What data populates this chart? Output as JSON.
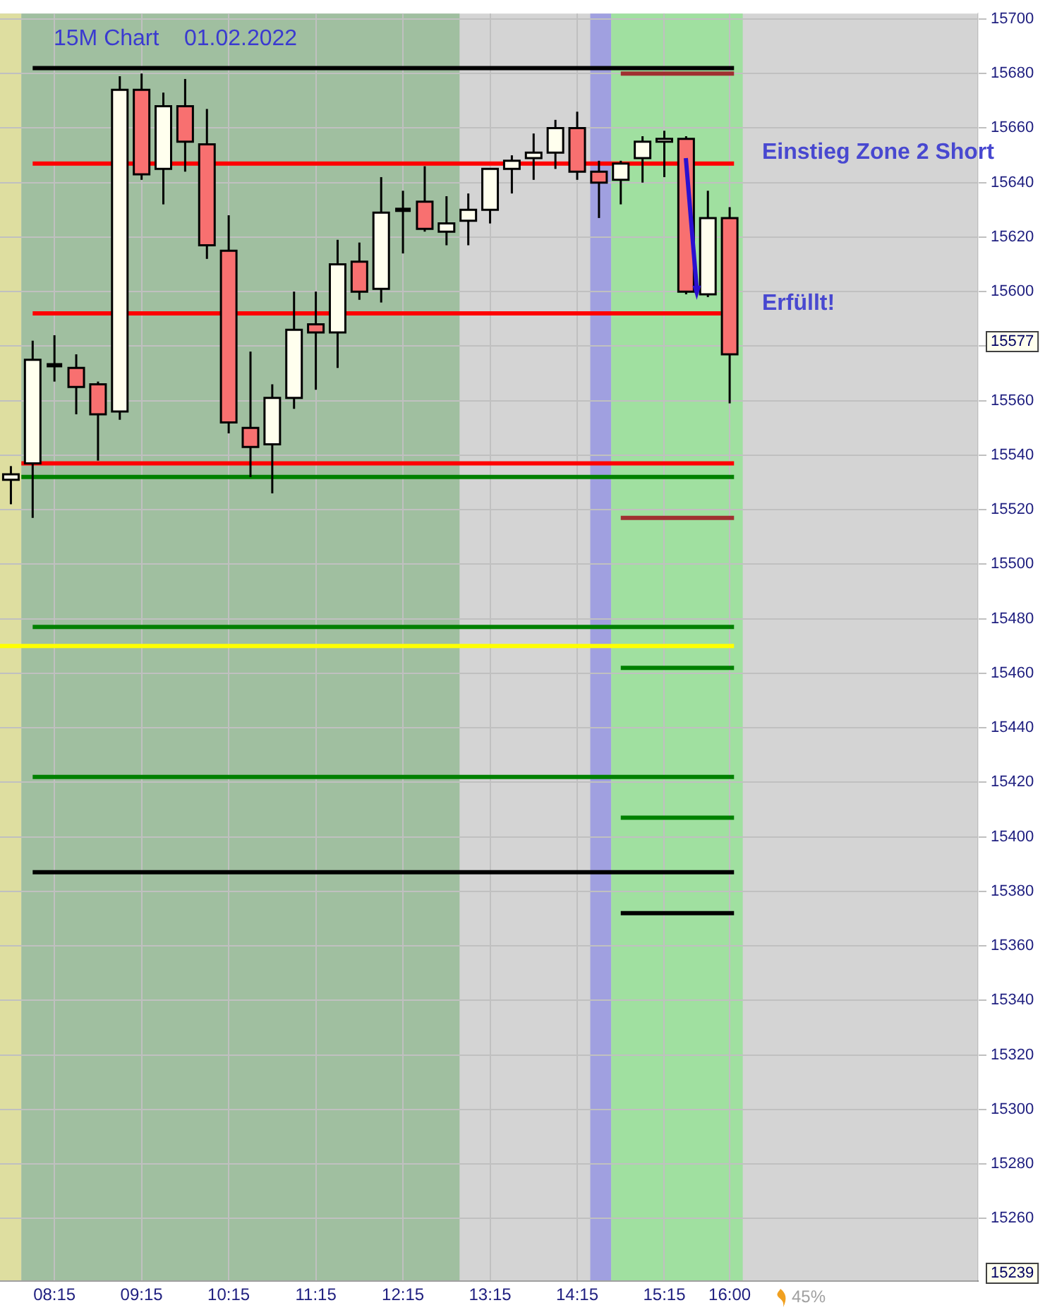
{
  "chart_data": {
    "type": "candlestick",
    "title": "15M Chart    01.02.2022",
    "x": [
      7.75,
      8,
      8.25,
      8.5,
      8.75,
      9,
      9.25,
      9.5,
      9.75,
      10,
      10.25,
      10.5,
      10.75,
      11,
      11.25,
      11.5,
      11.75,
      12,
      12.25,
      12.5,
      12.75,
      13,
      13.25,
      13.5,
      13.75,
      14,
      14.25,
      14.5,
      14.75,
      15,
      15.25,
      15.5,
      15.75,
      16
    ],
    "ohlc": [
      [
        15531,
        15536,
        15522,
        15533
      ],
      [
        15537,
        15582,
        15517,
        15575
      ],
      [
        15573,
        15584,
        15567,
        15573
      ],
      [
        15572,
        15577,
        15555,
        15565
      ],
      [
        15566,
        15567,
        15538,
        15555
      ],
      [
        15556,
        15679,
        15553,
        15674
      ],
      [
        15674,
        15680,
        15641,
        15643
      ],
      [
        15645,
        15673,
        15632,
        15668
      ],
      [
        15668,
        15678,
        15644,
        15655
      ],
      [
        15654,
        15667,
        15612,
        15617
      ],
      [
        15615,
        15628,
        15548,
        15552
      ],
      [
        15550,
        15578,
        15532,
        15543
      ],
      [
        15544,
        15566,
        15526,
        15561
      ],
      [
        15561,
        15600,
        15557,
        15586
      ],
      [
        15588,
        15600,
        15564,
        15585
      ],
      [
        15585,
        15619,
        15572,
        15610
      ],
      [
        15611,
        15618,
        15597,
        15600
      ],
      [
        15601,
        15642,
        15596,
        15629
      ],
      [
        15630,
        15637,
        15614,
        15630
      ],
      [
        15633,
        15646,
        15622,
        15623
      ],
      [
        15622,
        15635,
        15617,
        15625
      ],
      [
        15626,
        15636,
        15617,
        15630
      ],
      [
        15630,
        15645,
        15625,
        15645
      ],
      [
        15645,
        15650,
        15636,
        15648
      ],
      [
        15649,
        15658,
        15641,
        15651
      ],
      [
        15651,
        15663,
        15645,
        15660
      ],
      [
        15660,
        15666,
        15641,
        15644
      ],
      [
        15644,
        15648,
        15627,
        15640
      ],
      [
        15641,
        15648,
        15632,
        15647
      ],
      [
        15649,
        15657,
        15640,
        15655
      ],
      [
        15655,
        15659,
        15642,
        15656
      ],
      [
        15656,
        15657,
        15599,
        15600
      ],
      [
        15599,
        15637,
        15598,
        15627
      ],
      [
        15627,
        15631,
        15559,
        15577
      ]
    ],
    "colors": [
      "#ffffee",
      "#ffffee",
      "#000000",
      "#f87070",
      "#f87070",
      "#ffffee",
      "#f87070",
      "#ffffee",
      "#f87070",
      "#f87070",
      "#f87070",
      "#f87070",
      "#ffffee",
      "#ffffee",
      "#f87070",
      "#ffffee",
      "#f87070",
      "#ffffee",
      "#000000",
      "#f87070",
      "#ffffee",
      "#ffffee",
      "#ffffee",
      "#ffffee",
      "#ffffee",
      "#ffffee",
      "#f87070",
      "#f87070",
      "#ffffee",
      "#ffffee",
      "#ffffee",
      "#f87070",
      "#ffffee",
      "#f87070"
    ],
    "series": [
      {
        "type": "line",
        "x": [
          8,
          16.05
        ],
        "values": [
          15682,
          15682
        ],
        "color": "#000000"
      },
      {
        "type": "line",
        "x": [
          8,
          16.05
        ],
        "values": [
          15647,
          15647
        ],
        "color": "#ff0000"
      },
      {
        "type": "line",
        "x": [
          8,
          15.9
        ],
        "values": [
          15592,
          15592
        ],
        "color": "#ff0000"
      },
      {
        "type": "line",
        "x": [
          7.87,
          16.05
        ],
        "values": [
          15537,
          15537
        ],
        "color": "#ff0000"
      },
      {
        "type": "line",
        "x": [
          7.87,
          16.05
        ],
        "values": [
          15532,
          15532
        ],
        "color": "#008000"
      },
      {
        "type": "line",
        "x": [
          8,
          16.05
        ],
        "values": [
          15477,
          15477
        ],
        "color": "#008000"
      },
      {
        "type": "line",
        "x": [
          7.625,
          16.05
        ],
        "values": [
          15470,
          15470
        ],
        "color": "#ffff00"
      },
      {
        "type": "line",
        "x": [
          8,
          16.05
        ],
        "values": [
          15422,
          15422
        ],
        "color": "#008000"
      },
      {
        "type": "line",
        "x": [
          8,
          16.05
        ],
        "values": [
          15387,
          15387
        ],
        "color": "#000000"
      },
      {
        "type": "line",
        "x": [
          14.75,
          16.05
        ],
        "values": [
          15680,
          15680
        ],
        "color": "#a03030"
      },
      {
        "type": "line",
        "x": [
          14.75,
          16.05
        ],
        "values": [
          15517,
          15517
        ],
        "color": "#a03030"
      },
      {
        "type": "line",
        "x": [
          14.75,
          16.05
        ],
        "values": [
          15462,
          15462
        ],
        "color": "#008000"
      },
      {
        "type": "line",
        "x": [
          14.75,
          16.05
        ],
        "values": [
          15407,
          15407
        ],
        "color": "#008000"
      },
      {
        "type": "line",
        "x": [
          14.75,
          16.05
        ],
        "values": [
          15372,
          15372
        ],
        "color": "#000000"
      }
    ],
    "bands": [
      {
        "axis": "x",
        "from": 7.625,
        "to": 7.87,
        "color": "#dedea0"
      },
      {
        "axis": "x",
        "from": 7.87,
        "to": 12.9,
        "color": "#a0bfa0"
      },
      {
        "axis": "x",
        "from": 14.4,
        "to": 14.64,
        "color": "#a0a0e0"
      },
      {
        "axis": "x",
        "from": 14.64,
        "to": 16.15,
        "color": "#a0e0a0"
      }
    ],
    "annotations": [
      "Einstieg Zone 2 Short",
      "Erfüllt!",
      "15577",
      "15239",
      "45%"
    ],
    "xlim": [
      7.625,
      18.85
    ],
    "xticks": [
      {
        "value": 8.25,
        "label": "08:15"
      },
      {
        "value": 9.25,
        "label": "09:15"
      },
      {
        "value": 10.25,
        "label": "10:15"
      },
      {
        "value": 11.25,
        "label": "11:15"
      },
      {
        "value": 12.25,
        "label": "12:15"
      },
      {
        "value": 13.25,
        "label": "13:15"
      },
      {
        "value": 14.25,
        "label": "14:15"
      },
      {
        "value": 15.25,
        "label": "15:15"
      },
      {
        "value": 16,
        "label": "16:00"
      }
    ],
    "ylim": [
      15237,
      15702
    ],
    "yticks": [
      15260,
      15280,
      15300,
      15320,
      15340,
      15360,
      15380,
      15400,
      15420,
      15440,
      15460,
      15480,
      15500,
      15520,
      15540,
      15560,
      {
        "value": 15580,
        "label": null
      },
      15600,
      15620,
      15640,
      15660,
      15680,
      15700
    ],
    "grid": true,
    "legend": false
  }
}
